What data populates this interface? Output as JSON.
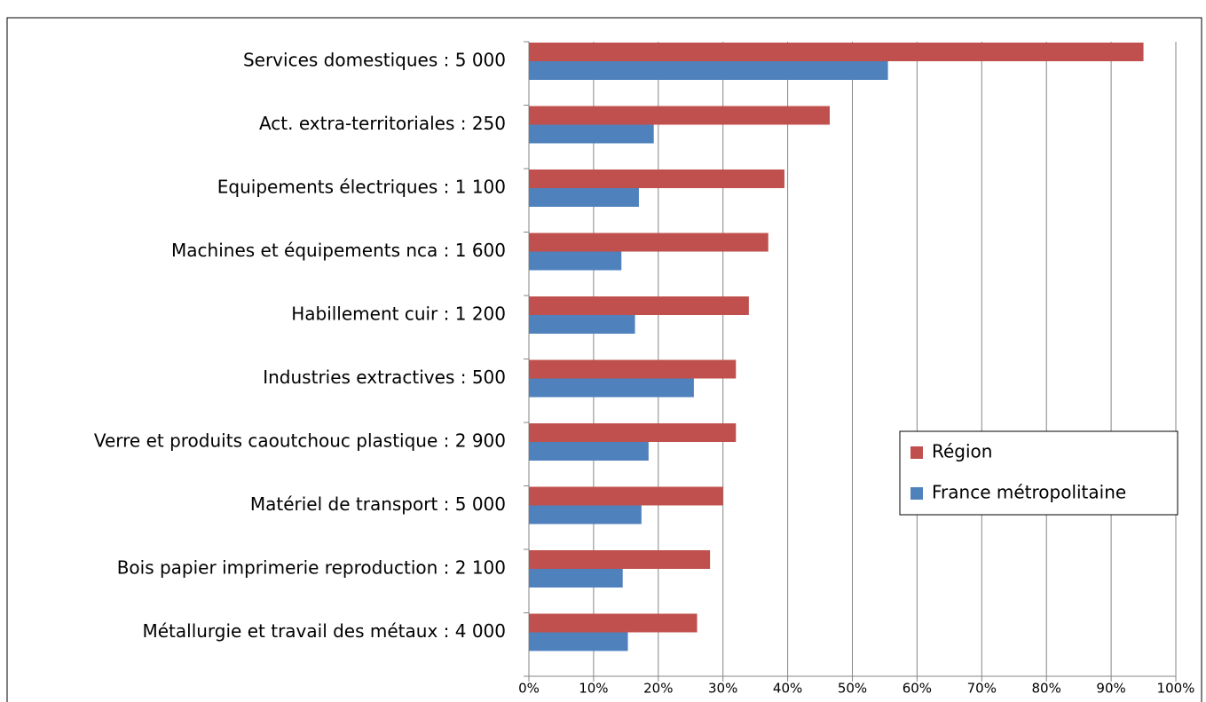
{
  "chart_data": {
    "type": "hbar",
    "categories": [
      "Services domestiques : 5 000",
      "Act. extra-territoriales : 250",
      "Equipements électriques : 1 100",
      "Machines et équipements nca : 1 600",
      "Habillement cuir : 1 200",
      "Industries extractives : 500",
      "Verre et produits caoutchouc plastique : 2 900",
      "Matériel de transport : 5 000",
      "Bois papier imprimerie reproduction : 2 100",
      "Métallurgie et travail des métaux : 4 000"
    ],
    "series": [
      {
        "name": "Région",
        "color": "#c0504d",
        "values": [
          95,
          46.5,
          39.5,
          37,
          34,
          32,
          32,
          30,
          28,
          26
        ]
      },
      {
        "name": "France métropolitaine",
        "color": "#4f81bd",
        "values": [
          55.5,
          19.3,
          17,
          14.3,
          16.4,
          25.5,
          18.5,
          17.4,
          14.5,
          15.3
        ]
      }
    ],
    "xlim": [
      0,
      100
    ],
    "xticks": [
      {
        "value": 0,
        "label": "0%"
      },
      {
        "value": 10,
        "label": "10%"
      },
      {
        "value": 20,
        "label": "20%"
      },
      {
        "value": 30,
        "label": "30%"
      },
      {
        "value": 40,
        "label": "40%"
      },
      {
        "value": 50,
        "label": "50%"
      },
      {
        "value": 60,
        "label": "60%"
      },
      {
        "value": 70,
        "label": "70%"
      },
      {
        "value": 80,
        "label": "80%"
      },
      {
        "value": 90,
        "label": "90%"
      },
      {
        "value": 100,
        "label": "100%"
      }
    ],
    "grid": true,
    "legend": "right"
  }
}
